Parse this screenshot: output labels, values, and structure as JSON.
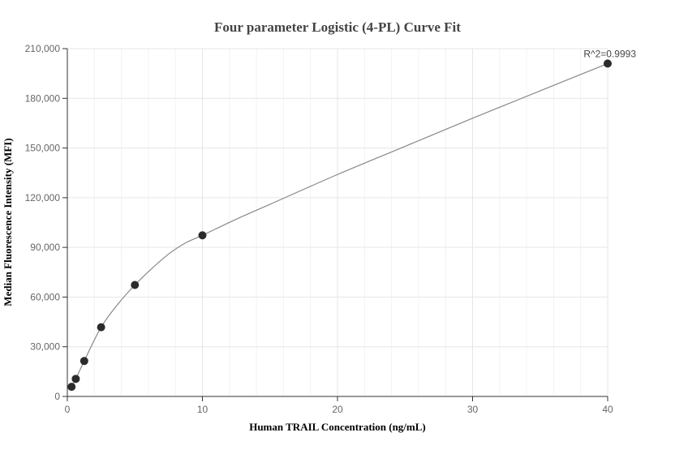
{
  "chart_data": {
    "type": "scatter",
    "title": "Four parameter Logistic (4-PL) Curve Fit",
    "xlabel": "Human TRAIL Concentration (ng/mL)",
    "ylabel": "Median Fluorescence Intensity (MFI)",
    "xlim": [
      0,
      40
    ],
    "ylim": [
      0,
      210000
    ],
    "x_ticks": [
      0,
      10,
      20,
      30,
      40
    ],
    "x_tick_labels": [
      "0",
      "10",
      "20",
      "30",
      "40"
    ],
    "y_ticks": [
      0,
      30000,
      60000,
      90000,
      120000,
      150000,
      180000,
      210000
    ],
    "y_tick_labels": [
      "0",
      "30,000",
      "60,000",
      "90,000",
      "120,000",
      "150,000",
      "180,000",
      "210,000"
    ],
    "grid": true,
    "series": [
      {
        "type": "scatter",
        "x": [
          0.3125,
          0.625,
          1.25,
          2.5,
          5,
          10,
          40
        ],
        "y": [
          5800,
          10600,
          21400,
          41800,
          67300,
          97300,
          201000
        ]
      },
      {
        "type": "line",
        "x": [
          0.3125,
          0.625,
          1.25,
          2.5,
          3.75,
          5,
          6.25,
          7.5,
          8.75,
          10,
          12.5,
          15,
          20,
          25,
          30,
          35,
          40
        ],
        "y": [
          5800,
          10600,
          21400,
          41800,
          55800,
          67300,
          77200,
          86000,
          92700,
          97300,
          107000,
          116000,
          134000,
          151000,
          168000,
          184500,
          201000
        ]
      }
    ],
    "annotations": [
      {
        "text": "R^2=0.9993",
        "x": 40,
        "y": 201000
      }
    ]
  },
  "colors": {
    "point": "#2b2b2b",
    "curve": "#888888",
    "grid": "#e6e6e6",
    "axis": "#333333"
  }
}
